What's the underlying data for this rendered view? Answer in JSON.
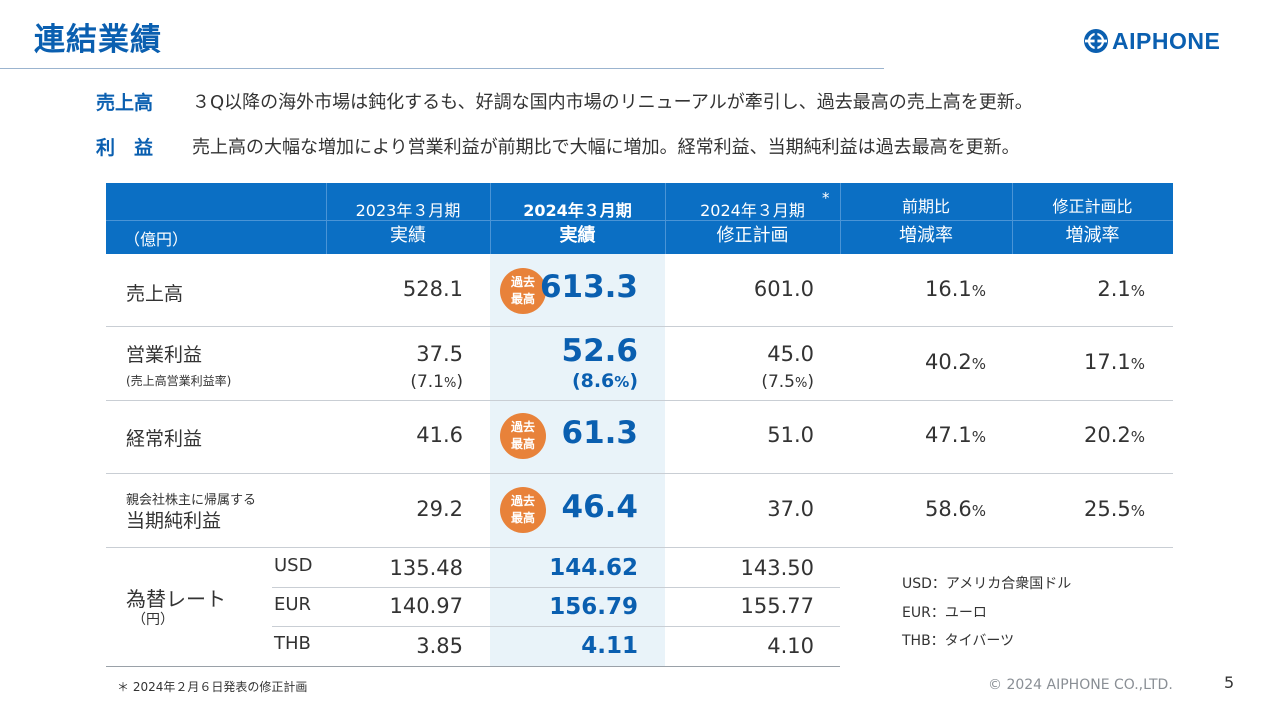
{
  "page_title": "連結業績",
  "logo_text": "AIPHONE",
  "summary": [
    {
      "label": "売上高",
      "text": "３Q以降の海外市場は鈍化するも、好調な国内市場のリニューアルが牽引し、過去最高の売上高を更新。"
    },
    {
      "label": "利　益",
      "text": "売上高の大幅な増加により営業利益が前期比で大幅に増加。経常利益、当期純利益は過去最高を更新。"
    }
  ],
  "table": {
    "unit": "（億円）",
    "headers": [
      {
        "l1": "2023年３月期",
        "l2": "実績"
      },
      {
        "l1": "2024年３月期",
        "l2": "実績"
      },
      {
        "l1": "2024年３月期",
        "l2": "修正計画",
        "mark": "*"
      },
      {
        "l1": "前期比",
        "l2": "増減率"
      },
      {
        "l1": "修正計画比",
        "l2": "増減率"
      }
    ],
    "record_badge": [
      "過去",
      "最高"
    ],
    "rows": [
      {
        "label": "売上高",
        "prev": "528.1",
        "actual": "613.3",
        "plan": "601.0",
        "yoy": "16.1",
        "vs_plan": "2.1",
        "pct": "%"
      },
      {
        "label": "営業利益",
        "sublabel": "(売上高営業利益率)",
        "prev": "37.5",
        "prev_rate": "(7.1",
        "actual": "52.6",
        "actual_rate": "(8.6",
        "plan": "45.0",
        "plan_rate": "(7.5",
        "yoy": "40.2",
        "vs_plan": "17.1",
        "pct": "%",
        "close": ")"
      },
      {
        "label": "経常利益",
        "prev": "41.6",
        "actual": "61.3",
        "plan": "51.0",
        "yoy": "47.1",
        "vs_plan": "20.2",
        "pct": "%"
      },
      {
        "label": "当期純利益",
        "prelabel": "親会社株主に帰属する",
        "prev": "29.2",
        "actual": "46.4",
        "plan": "37.0",
        "yoy": "58.6",
        "vs_plan": "25.5",
        "pct": "%"
      }
    ],
    "fx": {
      "label": "為替レート",
      "unit": "（円）",
      "rows": [
        {
          "ccy": "USD",
          "prev": "135.48",
          "actual": "144.62",
          "plan": "143.50"
        },
        {
          "ccy": "EUR",
          "prev": "140.97",
          "actual": "156.79",
          "plan": "155.77"
        },
        {
          "ccy": "THB",
          "prev": "3.85",
          "actual": "4.11",
          "plan": "4.10"
        }
      ]
    },
    "legend": [
      "USD：アメリカ合衆国ドル",
      "EUR：ユーロ",
      "THB：タイバーツ"
    ]
  },
  "footnote": "＊ 2024年２月６日発表の修正計画",
  "copyright": "© 2024 AIPHONE CO.,LTD.",
  "page_number": "5",
  "colors": {
    "brand_blue": "#0a5fb0",
    "header_blue": "#0b6fc4",
    "badge_orange": "#e8823a",
    "highlight": "#e9f3f9"
  }
}
